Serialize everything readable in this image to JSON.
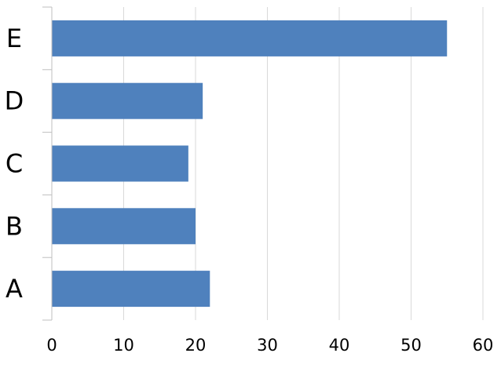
{
  "chart_data": {
    "type": "bar",
    "orientation": "horizontal",
    "categories": [
      "A",
      "B",
      "C",
      "D",
      "E"
    ],
    "values": [
      22,
      20,
      19,
      21,
      55
    ],
    "xlim": [
      0,
      60
    ],
    "xticks": [
      0,
      10,
      20,
      30,
      40,
      50,
      60
    ],
    "grid": true,
    "bar_color": "#4F81BD",
    "grid_color": "#D9D9D9",
    "axis_color": "#BFBFBF"
  }
}
